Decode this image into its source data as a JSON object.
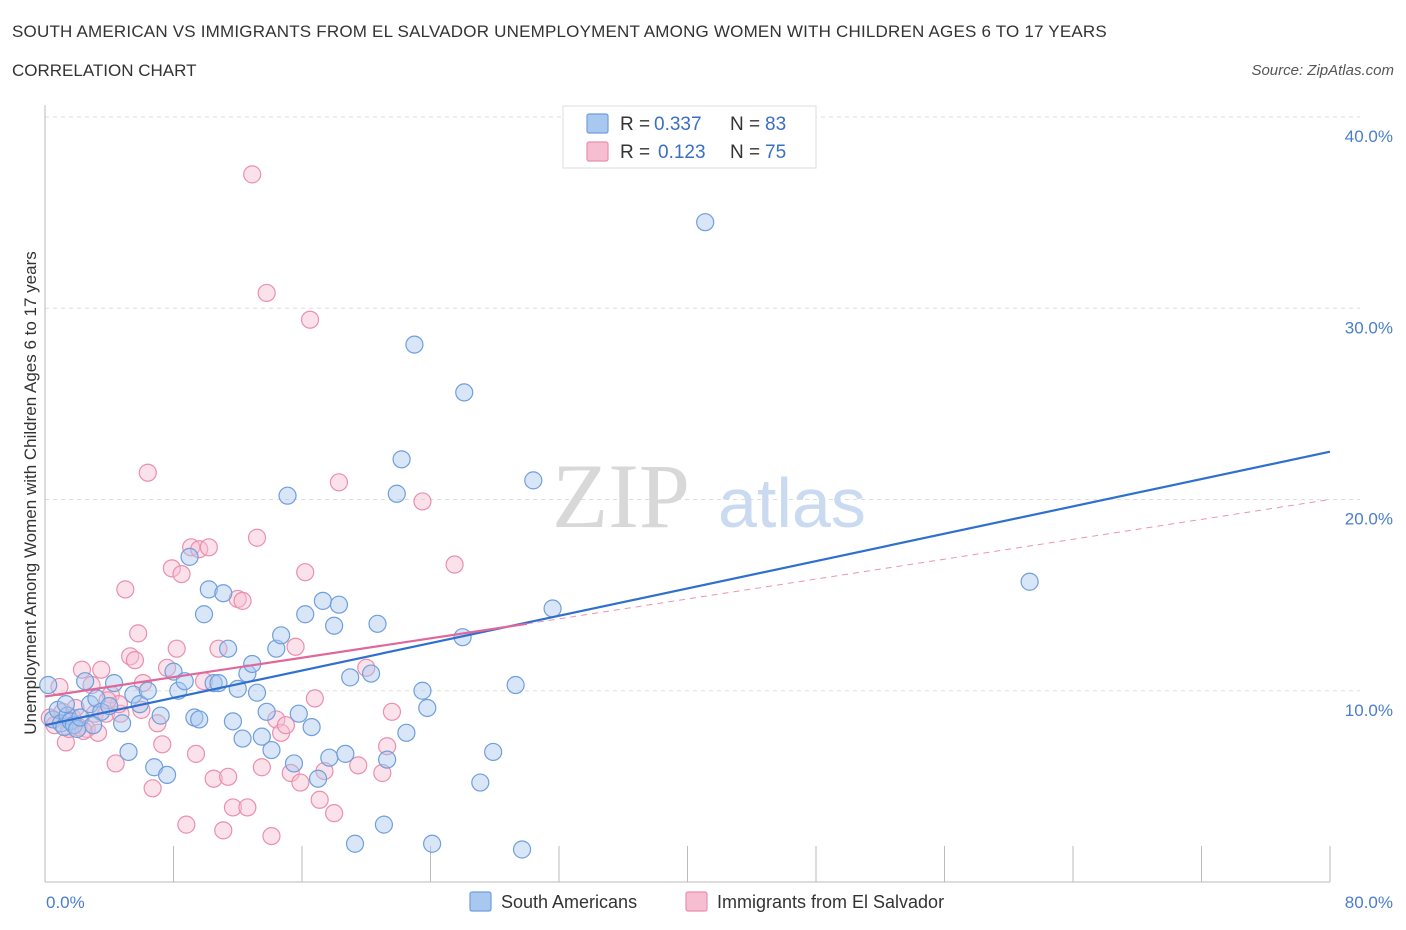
{
  "title": "SOUTH AMERICAN VS IMMIGRANTS FROM EL SALVADOR UNEMPLOYMENT AMONG WOMEN WITH CHILDREN AGES 6 TO 17 YEARS",
  "subtitle": "CORRELATION CHART",
  "source": "Source: ZipAtlas.com",
  "watermark": {
    "zip": "ZIP",
    "atlas": "atlas"
  },
  "legend": {
    "row1": {
      "r_label": "R =",
      "r_value": "0.337",
      "n_label": "N =",
      "n_value": "83"
    },
    "row2": {
      "r_label": "R =",
      "r_value": "0.123",
      "n_label": "N =",
      "n_value": "75"
    }
  },
  "colors": {
    "blue_fill": "#a9c8ef",
    "blue_stroke": "#6f9fdc",
    "blue_line": "#2f6fce",
    "pink_fill": "#f6bed0",
    "pink_stroke": "#ea8fae",
    "pink_line": "#e0679a",
    "grid": "#dddddd",
    "axis_text": "#4a7ecb"
  },
  "chart_data": {
    "type": "scatter",
    "xlabel": "",
    "ylabel": "Unemployment Among Women with Children Ages 6 to 17 years",
    "xlim": [
      0,
      80
    ],
    "ylim": [
      0,
      40
    ],
    "x_tick_labels": [
      "0.0%",
      "80.0%"
    ],
    "y_tick_labels": [
      "10.0%",
      "20.0%",
      "30.0%",
      "40.0%"
    ],
    "y_ticks": [
      10,
      20,
      30,
      40
    ],
    "grid": true,
    "legend_position": "top-center",
    "series": [
      {
        "name": "South Americans",
        "color": "#a9c8ef",
        "r": 0.337,
        "n": 83,
        "trend": {
          "x": [
            0,
            80
          ],
          "y": [
            8.2,
            22.5
          ],
          "style": "solid"
        },
        "points": [
          [
            0.2,
            10.3
          ],
          [
            0.5,
            8.5
          ],
          [
            0.8,
            9.0
          ],
          [
            1.0,
            8.3
          ],
          [
            1.2,
            8.1
          ],
          [
            1.4,
            8.7
          ],
          [
            1.6,
            8.4
          ],
          [
            1.8,
            8.2
          ],
          [
            2.0,
            8.0
          ],
          [
            2.2,
            8.6
          ],
          [
            2.5,
            10.5
          ],
          [
            2.8,
            9.3
          ],
          [
            3.2,
            9.6
          ],
          [
            3.5,
            8.9
          ],
          [
            4.0,
            9.2
          ],
          [
            4.3,
            10.4
          ],
          [
            4.8,
            8.3
          ],
          [
            5.2,
            6.8
          ],
          [
            5.5,
            9.8
          ],
          [
            5.9,
            9.3
          ],
          [
            6.4,
            10.0
          ],
          [
            6.8,
            6.0
          ],
          [
            7.2,
            8.7
          ],
          [
            7.6,
            5.6
          ],
          [
            8.0,
            11.0
          ],
          [
            8.3,
            10.0
          ],
          [
            8.7,
            10.5
          ],
          [
            9.0,
            17.0
          ],
          [
            9.3,
            8.6
          ],
          [
            9.6,
            8.5
          ],
          [
            9.9,
            14.0
          ],
          [
            10.2,
            15.3
          ],
          [
            10.5,
            10.4
          ],
          [
            10.8,
            10.4
          ],
          [
            11.1,
            15.1
          ],
          [
            11.4,
            12.2
          ],
          [
            11.7,
            8.4
          ],
          [
            12.0,
            10.1
          ],
          [
            12.3,
            7.5
          ],
          [
            12.6,
            10.9
          ],
          [
            12.9,
            11.4
          ],
          [
            13.2,
            9.9
          ],
          [
            13.5,
            7.6
          ],
          [
            13.8,
            8.9
          ],
          [
            14.1,
            6.9
          ],
          [
            14.4,
            12.2
          ],
          [
            14.7,
            12.9
          ],
          [
            15.1,
            20.2
          ],
          [
            15.5,
            6.2
          ],
          [
            15.8,
            8.8
          ],
          [
            16.2,
            14.0
          ],
          [
            16.6,
            8.1
          ],
          [
            17.0,
            5.4
          ],
          [
            17.3,
            14.7
          ],
          [
            17.7,
            6.5
          ],
          [
            18.0,
            13.4
          ],
          [
            18.3,
            14.5
          ],
          [
            18.7,
            6.7
          ],
          [
            19.0,
            10.7
          ],
          [
            19.3,
            2.0
          ],
          [
            20.3,
            10.9
          ],
          [
            20.7,
            13.5
          ],
          [
            21.1,
            3.0
          ],
          [
            21.3,
            6.4
          ],
          [
            21.9,
            20.3
          ],
          [
            22.2,
            22.1
          ],
          [
            22.5,
            7.8
          ],
          [
            23.0,
            28.1
          ],
          [
            23.5,
            10.0
          ],
          [
            23.8,
            9.1
          ],
          [
            24.1,
            2.0
          ],
          [
            26.0,
            12.8
          ],
          [
            26.1,
            25.6
          ],
          [
            27.1,
            5.2
          ],
          [
            27.9,
            6.8
          ],
          [
            29.3,
            10.3
          ],
          [
            29.7,
            1.7
          ],
          [
            30.4,
            21.0
          ],
          [
            31.6,
            14.3
          ],
          [
            41.1,
            34.5
          ],
          [
            61.3,
            15.7
          ],
          [
            3.0,
            8.2
          ],
          [
            1.3,
            9.3
          ]
        ]
      },
      {
        "name": "Immigrants from El Salvador",
        "color": "#f6bed0",
        "r": 0.123,
        "n": 75,
        "trend": {
          "x": [
            0,
            30
          ],
          "y": [
            9.7,
            13.5
          ],
          "style": "solid",
          "extension": {
            "x": [
              30,
              80
            ],
            "y": [
              13.5,
              20.0
            ],
            "style": "dashed"
          }
        },
        "points": [
          [
            0.3,
            8.6
          ],
          [
            0.6,
            8.2
          ],
          [
            0.9,
            10.2
          ],
          [
            1.1,
            8.9
          ],
          [
            1.3,
            7.3
          ],
          [
            1.5,
            8.0
          ],
          [
            1.7,
            8.6
          ],
          [
            1.9,
            9.1
          ],
          [
            2.1,
            8.1
          ],
          [
            2.3,
            11.1
          ],
          [
            2.6,
            8.0
          ],
          [
            2.9,
            10.3
          ],
          [
            3.1,
            8.8
          ],
          [
            3.3,
            7.8
          ],
          [
            3.5,
            11.1
          ],
          [
            3.8,
            8.8
          ],
          [
            4.1,
            9.8
          ],
          [
            4.4,
            6.2
          ],
          [
            4.7,
            8.8
          ],
          [
            5.0,
            15.3
          ],
          [
            5.3,
            11.8
          ],
          [
            5.6,
            11.6
          ],
          [
            5.8,
            13.0
          ],
          [
            6.1,
            10.4
          ],
          [
            6.4,
            21.4
          ],
          [
            6.7,
            4.9
          ],
          [
            7.0,
            8.3
          ],
          [
            7.3,
            7.2
          ],
          [
            7.6,
            11.2
          ],
          [
            7.9,
            16.4
          ],
          [
            8.2,
            12.2
          ],
          [
            8.5,
            16.1
          ],
          [
            8.8,
            3.0
          ],
          [
            9.1,
            17.5
          ],
          [
            9.4,
            6.7
          ],
          [
            9.6,
            17.4
          ],
          [
            9.9,
            10.5
          ],
          [
            10.2,
            17.5
          ],
          [
            10.5,
            5.4
          ],
          [
            10.8,
            12.2
          ],
          [
            11.1,
            2.7
          ],
          [
            11.4,
            5.5
          ],
          [
            11.7,
            3.9
          ],
          [
            12.0,
            14.8
          ],
          [
            12.3,
            14.7
          ],
          [
            12.6,
            3.9
          ],
          [
            12.9,
            37.0
          ],
          [
            13.2,
            18.0
          ],
          [
            13.5,
            6.0
          ],
          [
            13.8,
            30.8
          ],
          [
            14.1,
            2.4
          ],
          [
            14.4,
            8.5
          ],
          [
            14.7,
            7.8
          ],
          [
            15.0,
            8.2
          ],
          [
            15.3,
            5.7
          ],
          [
            15.6,
            12.3
          ],
          [
            15.9,
            5.2
          ],
          [
            16.2,
            16.2
          ],
          [
            16.5,
            29.4
          ],
          [
            16.8,
            9.6
          ],
          [
            17.1,
            4.3
          ],
          [
            17.4,
            5.8
          ],
          [
            18.0,
            3.6
          ],
          [
            18.3,
            20.9
          ],
          [
            19.5,
            6.1
          ],
          [
            20.0,
            11.2
          ],
          [
            21.0,
            5.7
          ],
          [
            21.3,
            7.1
          ],
          [
            21.6,
            8.9
          ],
          [
            23.5,
            19.9
          ],
          [
            25.5,
            16.6
          ],
          [
            4.6,
            9.3
          ],
          [
            6.0,
            9.0
          ],
          [
            2.4,
            7.9
          ],
          [
            3.9,
            9.5
          ]
        ]
      }
    ]
  },
  "bottom_legend": {
    "item1": "South Americans",
    "item2": "Immigrants from El Salvador"
  }
}
